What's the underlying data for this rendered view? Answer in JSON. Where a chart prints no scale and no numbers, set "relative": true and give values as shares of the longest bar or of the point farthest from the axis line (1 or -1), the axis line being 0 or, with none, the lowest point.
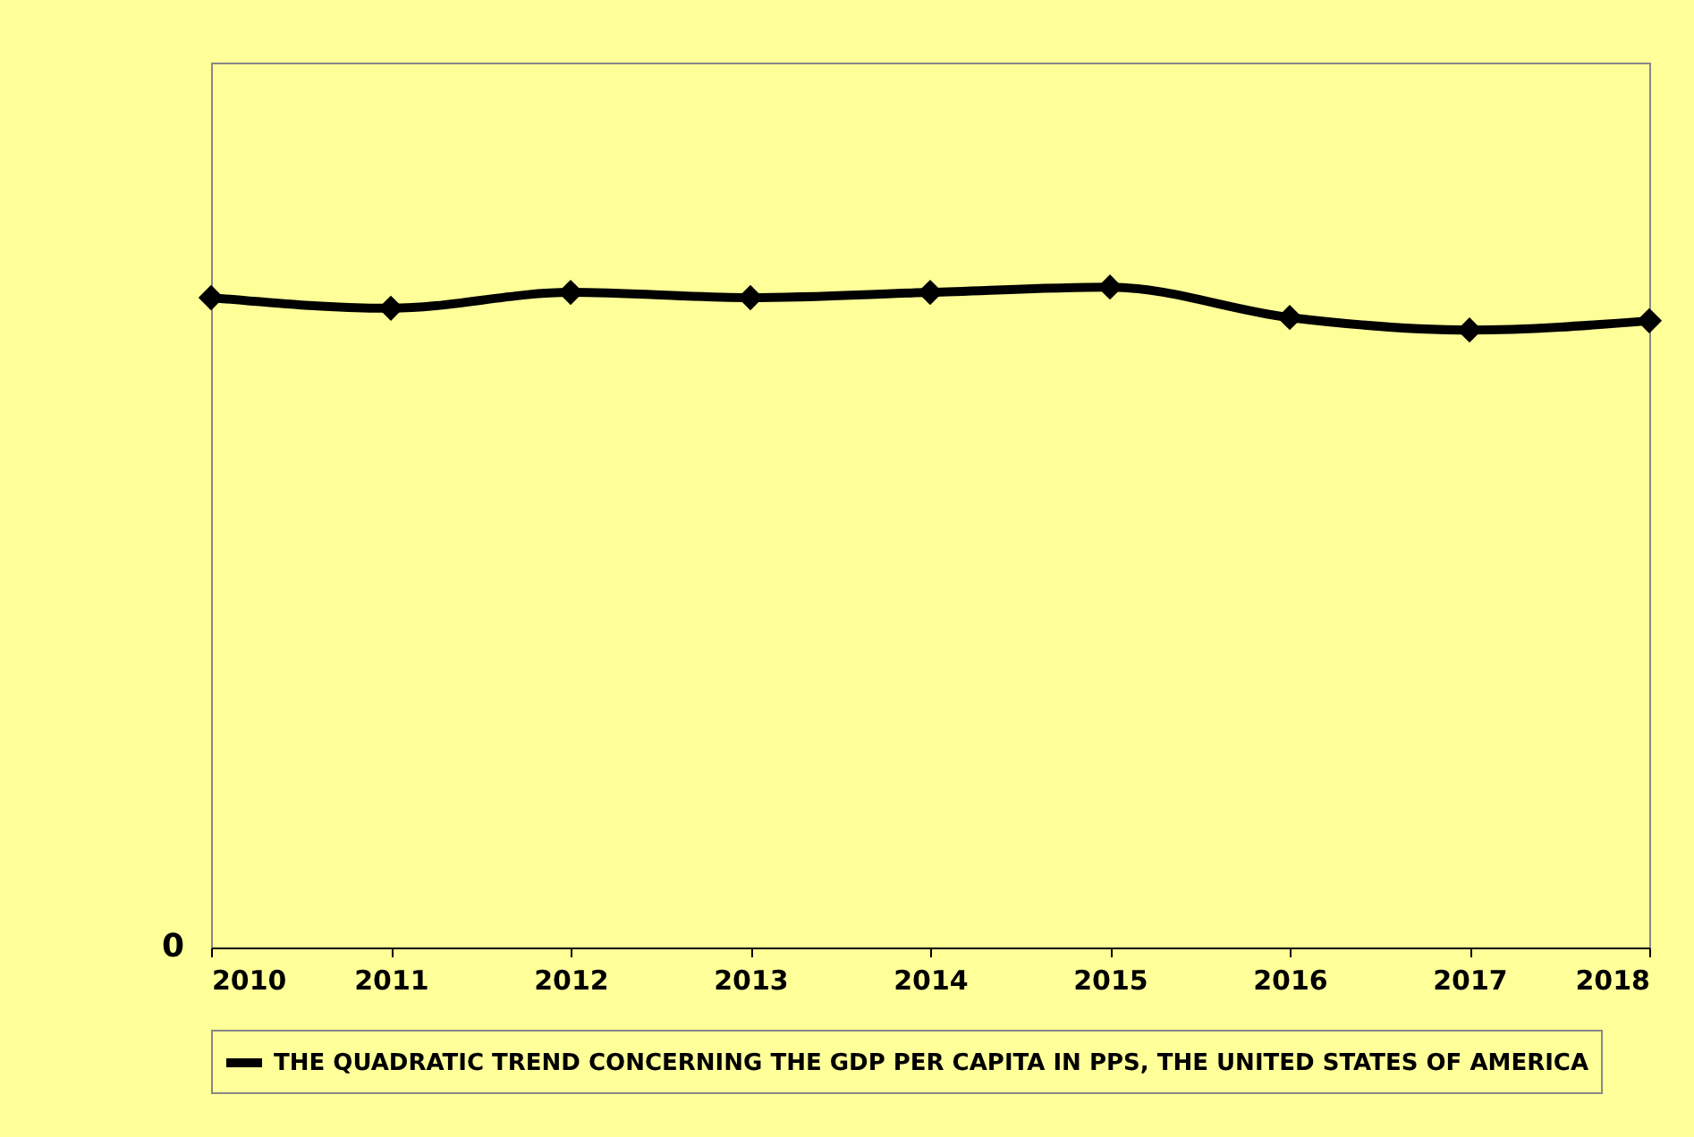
{
  "chart_data": {
    "type": "line",
    "relative": true,
    "categories": [
      "2010",
      "2011",
      "2012",
      "2013",
      "2014",
      "2015",
      "2016",
      "2017",
      "2018"
    ],
    "series": [
      {
        "name": "THE QUADRATIC TREND CONCERNING THE GDP PER CAPITA IN PPS, THE UNITED STATES OF AMERICA",
        "color": "#000000",
        "values": [
          0.984,
          0.968,
          0.992,
          0.984,
          0.992,
          1,
          0.954,
          0.935,
          0.949
        ]
      }
    ],
    "annotations": [
      "0"
    ],
    "marker": "diamond",
    "legend": "bottom",
    "grid": false
  }
}
